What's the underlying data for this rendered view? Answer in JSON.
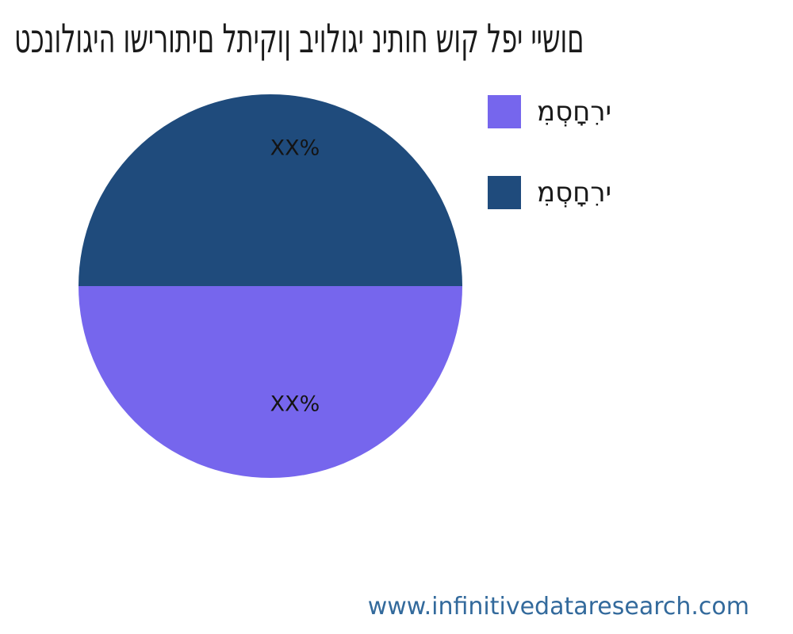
{
  "title": "טכנולוגיה ושירותים לתיקון ביולוגי ניתוח שוק לפי יישום",
  "legend": {
    "position": "right",
    "items": [
      {
        "label": "מִסְחָרִי",
        "color": "#7666ED"
      },
      {
        "label": "מִסְחָרִי",
        "color": "#1F4B7C"
      }
    ]
  },
  "footer": {
    "url": "www.infinitivedataresearch.com",
    "color": "#336A9C"
  },
  "chart_data": {
    "type": "pie",
    "title": "טכנולוגיה ושירותים לתיקון ביולוגי ניתוח שוק לפי יישום",
    "legend_position": "right",
    "start_angle_css": "90deg",
    "slices": [
      {
        "label": "מִסְחָרִי",
        "value": 50,
        "display_pct": "XX%",
        "color": "#7666ED",
        "position": "bottom"
      },
      {
        "label": "מִסְחָרִי",
        "value": 50,
        "display_pct": "XX%",
        "color": "#1F4B7C",
        "position": "top"
      }
    ]
  }
}
